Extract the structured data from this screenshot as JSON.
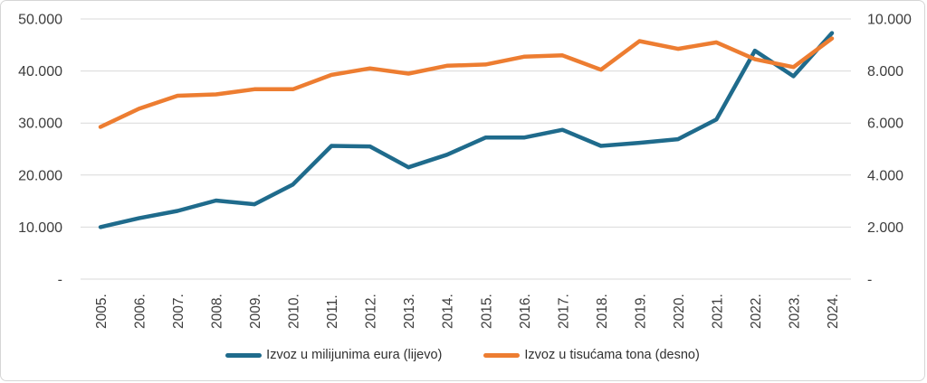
{
  "chart_data": {
    "type": "line",
    "x": [
      "2005.",
      "2006.",
      "2007.",
      "2008.",
      "2009.",
      "2010.",
      "2011.",
      "2012.",
      "2013.",
      "2014.",
      "2015.",
      "2016.",
      "2017.",
      "2018.",
      "2019.",
      "2020.",
      "2021.",
      "2022.",
      "2023.",
      "2024."
    ],
    "series": [
      {
        "name": "Izvoz u milijunima eura (lijevo)",
        "axis": "left",
        "color": "#1F6B8C",
        "values": [
          10000,
          11700,
          13100,
          15100,
          14400,
          18200,
          25600,
          25500,
          21500,
          23900,
          27200,
          27200,
          28700,
          25600,
          26200,
          26900,
          30700,
          43900,
          39000,
          47300
        ]
      },
      {
        "name": "Izvoz u tisućama tona (desno)",
        "axis": "right",
        "color": "#ED7D31",
        "values": [
          5850,
          6550,
          7050,
          7100,
          7300,
          7300,
          7850,
          8100,
          7900,
          8200,
          8250,
          8550,
          8600,
          8050,
          9150,
          8850,
          9100,
          8450,
          8150,
          9250
        ]
      }
    ],
    "left_axis": {
      "min": 0,
      "max": 50000,
      "tick_labels_top_to_bottom": [
        "50.000",
        "40.000",
        "30.000",
        "20.000",
        "10.000",
        "-"
      ]
    },
    "right_axis": {
      "min": 0,
      "max": 10000,
      "tick_labels_top_to_bottom": [
        "10.000",
        "8.000",
        "6.000",
        "4.000",
        "2.000",
        "-"
      ]
    },
    "grid": "horizontal-only",
    "legend_position": "bottom"
  },
  "colors": {
    "gridline": "#d9d9d9",
    "axis_text": "#3d3d3d",
    "series_blue": "#1F6B8C",
    "series_orange": "#ED7D31"
  }
}
